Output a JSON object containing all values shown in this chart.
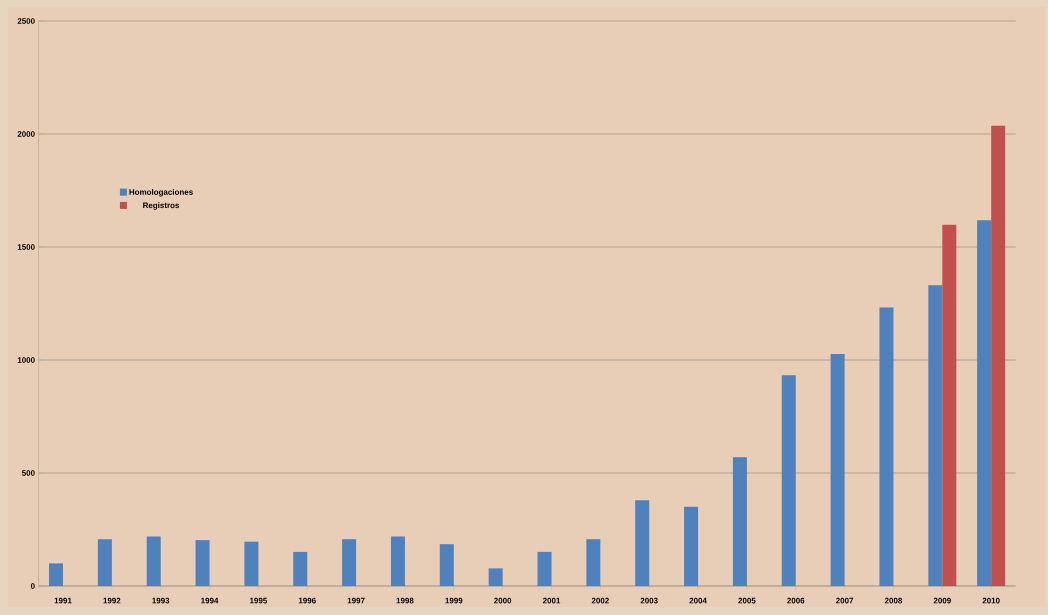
{
  "chart_data": {
    "type": "bar",
    "categories": [
      "1991",
      "1992",
      "1993",
      "1994",
      "1995",
      "1996",
      "1997",
      "1998",
      "1999",
      "2000",
      "2001",
      "2002",
      "2003",
      "2004",
      "2005",
      "2006",
      "2007",
      "2008",
      "2009",
      "2010"
    ],
    "series": [
      {
        "name": "Homologaciones",
        "color": "#4f81bd",
        "values": [
          100,
          207,
          219,
          203,
          196,
          151,
          207,
          219,
          185,
          78,
          151,
          207,
          379,
          351,
          570,
          932,
          1027,
          1232,
          1331,
          1618
        ]
      },
      {
        "name": "Registros",
        "color": "#c0504d",
        "values": [
          null,
          null,
          null,
          null,
          null,
          null,
          null,
          null,
          null,
          null,
          null,
          null,
          null,
          null,
          null,
          null,
          null,
          null,
          1599,
          2036
        ]
      }
    ],
    "ylim": [
      0,
      2500
    ],
    "yticks": [
      0,
      500,
      1000,
      1500,
      2000,
      2500
    ],
    "grid": "y",
    "legend": "top left"
  }
}
